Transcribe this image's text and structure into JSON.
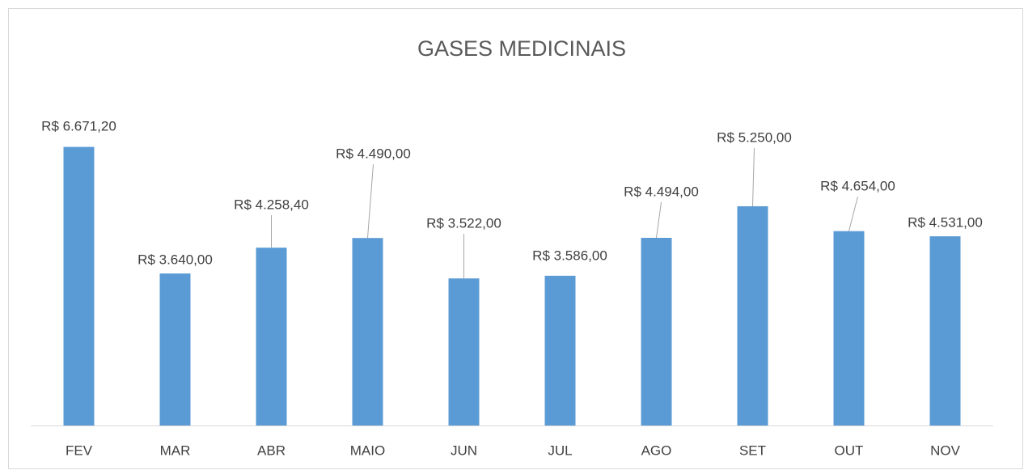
{
  "chart_data": {
    "type": "bar",
    "title": "GASES MEDICINAIS",
    "categories": [
      "FEV",
      "MAR",
      "ABR",
      "MAIO",
      "JUN",
      "JUL",
      "AGO",
      "SET",
      "OUT",
      "NOV"
    ],
    "values": [
      6671.2,
      3640,
      4258.4,
      4490,
      3522,
      3586,
      4494,
      5250,
      4654,
      4531
    ],
    "value_labels": [
      "R$ 6.671,20",
      "R$ 3.640,00",
      "R$ 4.258,40",
      "R$ 4.490,00",
      "R$ 3.522,00",
      "R$ 3.586,00",
      "R$ 4.494,00",
      "R$ 5.250,00",
      "R$ 4.654,00",
      "R$ 4.531,00"
    ],
    "color": "#5b9bd5",
    "ylim": [
      0,
      8000
    ]
  }
}
